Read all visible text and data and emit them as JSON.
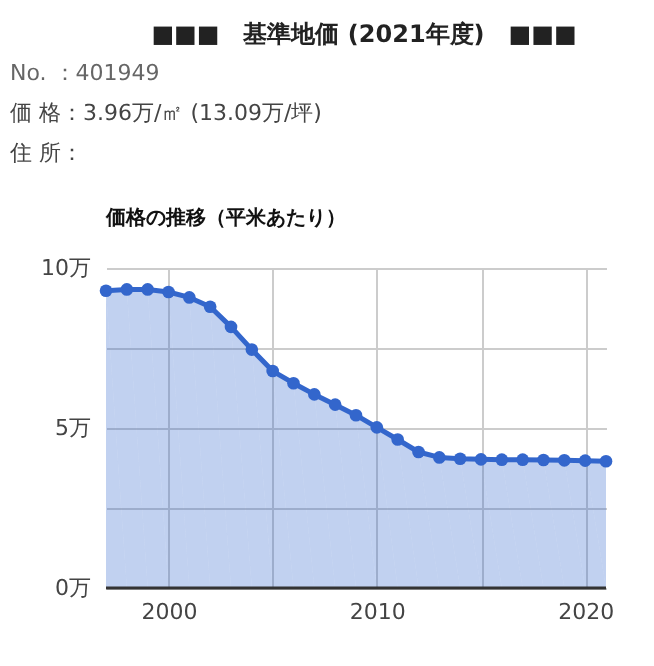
{
  "chart_data": {
    "type": "area",
    "title": "■■■　基準地価 (2021年度)　■■■",
    "annotations": [
      "No. ：401949",
      "価 格：3.96万/㎡ (13.09万/坪)",
      "住 所：",
      "価格の推移（平米あたり）"
    ],
    "x": [
      1997,
      1998,
      1999,
      2000,
      2001,
      2002,
      2003,
      2004,
      2005,
      2006,
      2007,
      2008,
      2009,
      2010,
      2011,
      2012,
      2013,
      2014,
      2015,
      2016,
      2017,
      2018,
      2019,
      2020,
      2021
    ],
    "series": [
      {
        "color": "#3366cc",
        "values": [
          9.29,
          9.33,
          9.33,
          9.25,
          9.08,
          8.79,
          8.16,
          7.45,
          6.78,
          6.4,
          6.05,
          5.73,
          5.4,
          5.02,
          4.64,
          4.25,
          4.08,
          4.04,
          4.02,
          4.01,
          4.01,
          4.0,
          3.99,
          3.98,
          3.96
        ]
      }
    ],
    "xlim": [
      1997,
      2021
    ],
    "xticks": [
      2000,
      {
        "value": 2005,
        "label": null
      },
      2010,
      {
        "value": 2015,
        "label": null
      },
      2020
    ],
    "ylim": [
      0,
      10
    ],
    "yticks": [
      {
        "value": 0,
        "label": "0万"
      },
      {
        "value": 2.5,
        "label": null
      },
      {
        "value": 5,
        "label": "5万"
      },
      {
        "value": 7.5,
        "label": null
      },
      {
        "value": 10,
        "label": "10万"
      }
    ],
    "grid": true,
    "marker": "circle"
  }
}
